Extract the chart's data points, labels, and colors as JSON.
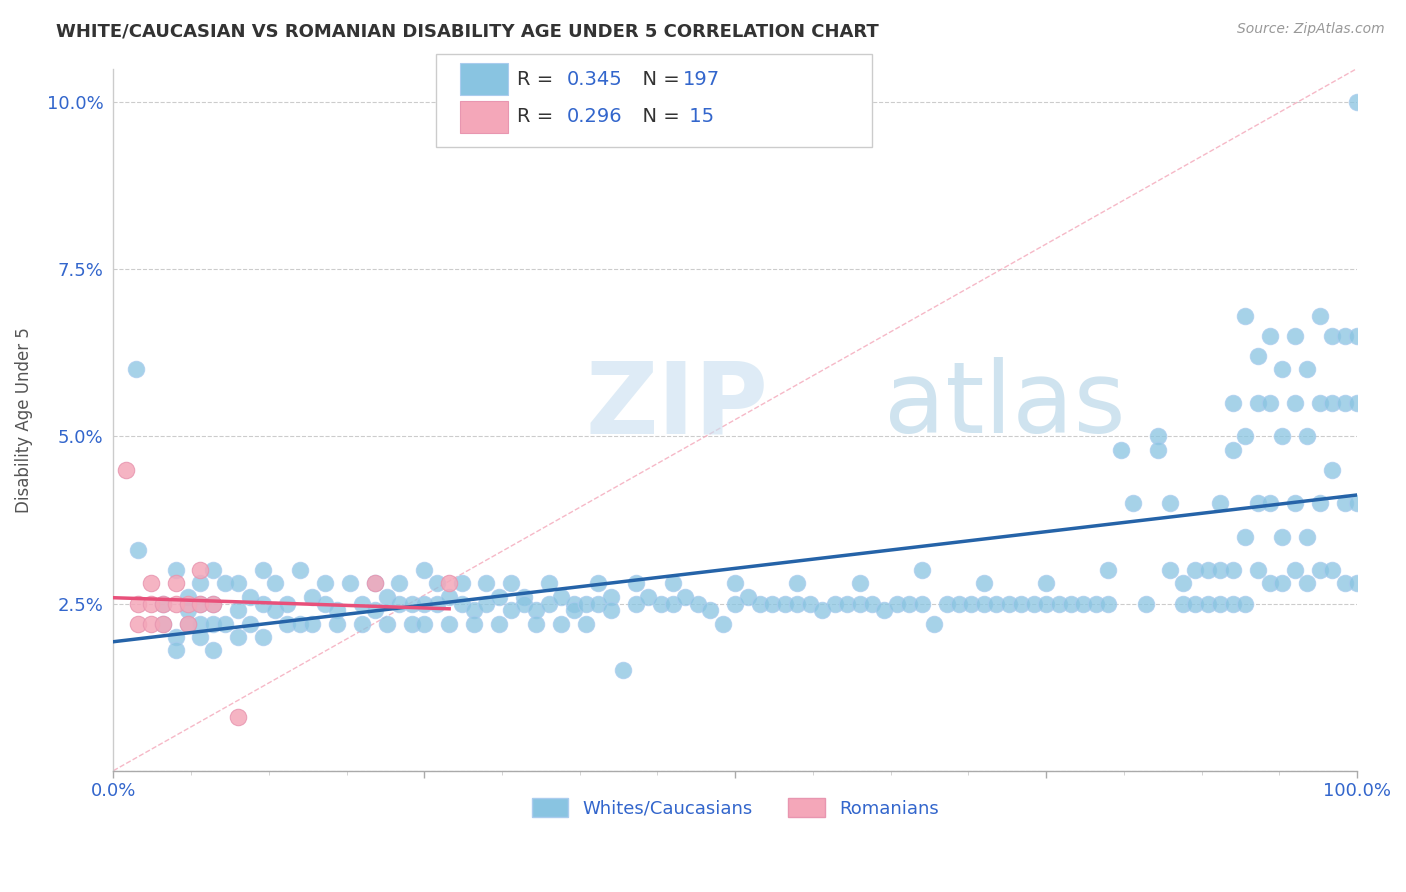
{
  "title": "WHITE/CAUCASIAN VS ROMANIAN DISABILITY AGE UNDER 5 CORRELATION CHART",
  "source": "Source: ZipAtlas.com",
  "ylabel": "Disability Age Under 5",
  "xlim": [
    0.0,
    1.0
  ],
  "ylim": [
    0.0,
    0.105
  ],
  "title_color": "#333333",
  "source_color": "#999999",
  "watermark_zip": "ZIP",
  "watermark_atlas": "atlas",
  "blue_color": "#89c4e1",
  "pink_color": "#f4a7b9",
  "blue_line_color": "#2563a8",
  "pink_line_color": "#e8507a",
  "diag_line_color": "#f4a7b9",
  "label_color": "#3366cc",
  "legend_text_color": "#333333",
  "whites_label": "Whites/Caucasians",
  "romanians_label": "Romanians",
  "blue_scatter": [
    [
      0.018,
      0.06
    ],
    [
      0.02,
      0.033
    ],
    [
      0.04,
      0.022
    ],
    [
      0.04,
      0.025
    ],
    [
      0.05,
      0.03
    ],
    [
      0.05,
      0.02
    ],
    [
      0.05,
      0.018
    ],
    [
      0.06,
      0.026
    ],
    [
      0.06,
      0.024
    ],
    [
      0.06,
      0.022
    ],
    [
      0.07,
      0.028
    ],
    [
      0.07,
      0.025
    ],
    [
      0.07,
      0.022
    ],
    [
      0.07,
      0.02
    ],
    [
      0.08,
      0.03
    ],
    [
      0.08,
      0.025
    ],
    [
      0.08,
      0.022
    ],
    [
      0.08,
      0.018
    ],
    [
      0.09,
      0.028
    ],
    [
      0.09,
      0.022
    ],
    [
      0.1,
      0.028
    ],
    [
      0.1,
      0.024
    ],
    [
      0.1,
      0.02
    ],
    [
      0.11,
      0.026
    ],
    [
      0.11,
      0.022
    ],
    [
      0.12,
      0.03
    ],
    [
      0.12,
      0.025
    ],
    [
      0.12,
      0.02
    ],
    [
      0.13,
      0.028
    ],
    [
      0.13,
      0.024
    ],
    [
      0.14,
      0.025
    ],
    [
      0.14,
      0.022
    ],
    [
      0.15,
      0.03
    ],
    [
      0.15,
      0.022
    ],
    [
      0.16,
      0.026
    ],
    [
      0.16,
      0.022
    ],
    [
      0.17,
      0.028
    ],
    [
      0.17,
      0.025
    ],
    [
      0.18,
      0.024
    ],
    [
      0.18,
      0.022
    ],
    [
      0.19,
      0.028
    ],
    [
      0.2,
      0.025
    ],
    [
      0.2,
      0.022
    ],
    [
      0.21,
      0.028
    ],
    [
      0.21,
      0.024
    ],
    [
      0.22,
      0.026
    ],
    [
      0.22,
      0.022
    ],
    [
      0.23,
      0.028
    ],
    [
      0.23,
      0.025
    ],
    [
      0.24,
      0.025
    ],
    [
      0.24,
      0.022
    ],
    [
      0.25,
      0.03
    ],
    [
      0.25,
      0.025
    ],
    [
      0.25,
      0.022
    ],
    [
      0.26,
      0.028
    ],
    [
      0.26,
      0.025
    ],
    [
      0.27,
      0.026
    ],
    [
      0.27,
      0.022
    ],
    [
      0.28,
      0.028
    ],
    [
      0.28,
      0.025
    ],
    [
      0.29,
      0.024
    ],
    [
      0.29,
      0.022
    ],
    [
      0.3,
      0.028
    ],
    [
      0.3,
      0.025
    ],
    [
      0.31,
      0.026
    ],
    [
      0.31,
      0.022
    ],
    [
      0.32,
      0.028
    ],
    [
      0.32,
      0.024
    ],
    [
      0.33,
      0.026
    ],
    [
      0.33,
      0.025
    ],
    [
      0.34,
      0.024
    ],
    [
      0.34,
      0.022
    ],
    [
      0.35,
      0.028
    ],
    [
      0.35,
      0.025
    ],
    [
      0.36,
      0.026
    ],
    [
      0.36,
      0.022
    ],
    [
      0.37,
      0.025
    ],
    [
      0.37,
      0.024
    ],
    [
      0.38,
      0.025
    ],
    [
      0.38,
      0.022
    ],
    [
      0.39,
      0.028
    ],
    [
      0.39,
      0.025
    ],
    [
      0.4,
      0.026
    ],
    [
      0.4,
      0.024
    ],
    [
      0.41,
      0.015
    ],
    [
      0.42,
      0.028
    ],
    [
      0.42,
      0.025
    ],
    [
      0.43,
      0.026
    ],
    [
      0.44,
      0.025
    ],
    [
      0.45,
      0.028
    ],
    [
      0.45,
      0.025
    ],
    [
      0.46,
      0.026
    ],
    [
      0.47,
      0.025
    ],
    [
      0.48,
      0.024
    ],
    [
      0.49,
      0.022
    ],
    [
      0.5,
      0.028
    ],
    [
      0.5,
      0.025
    ],
    [
      0.51,
      0.026
    ],
    [
      0.52,
      0.025
    ],
    [
      0.53,
      0.025
    ],
    [
      0.54,
      0.025
    ],
    [
      0.55,
      0.028
    ],
    [
      0.55,
      0.025
    ],
    [
      0.56,
      0.025
    ],
    [
      0.57,
      0.024
    ],
    [
      0.58,
      0.025
    ],
    [
      0.59,
      0.025
    ],
    [
      0.6,
      0.028
    ],
    [
      0.6,
      0.025
    ],
    [
      0.61,
      0.025
    ],
    [
      0.62,
      0.024
    ],
    [
      0.63,
      0.025
    ],
    [
      0.64,
      0.025
    ],
    [
      0.65,
      0.03
    ],
    [
      0.65,
      0.025
    ],
    [
      0.66,
      0.022
    ],
    [
      0.67,
      0.025
    ],
    [
      0.68,
      0.025
    ],
    [
      0.69,
      0.025
    ],
    [
      0.7,
      0.028
    ],
    [
      0.7,
      0.025
    ],
    [
      0.71,
      0.025
    ],
    [
      0.72,
      0.025
    ],
    [
      0.73,
      0.025
    ],
    [
      0.74,
      0.025
    ],
    [
      0.75,
      0.028
    ],
    [
      0.75,
      0.025
    ],
    [
      0.76,
      0.025
    ],
    [
      0.77,
      0.025
    ],
    [
      0.78,
      0.025
    ],
    [
      0.79,
      0.025
    ],
    [
      0.8,
      0.03
    ],
    [
      0.8,
      0.025
    ],
    [
      0.81,
      0.048
    ],
    [
      0.82,
      0.04
    ],
    [
      0.83,
      0.025
    ],
    [
      0.84,
      0.05
    ],
    [
      0.84,
      0.048
    ],
    [
      0.85,
      0.04
    ],
    [
      0.85,
      0.03
    ],
    [
      0.86,
      0.028
    ],
    [
      0.86,
      0.025
    ],
    [
      0.87,
      0.03
    ],
    [
      0.87,
      0.025
    ],
    [
      0.88,
      0.03
    ],
    [
      0.88,
      0.025
    ],
    [
      0.89,
      0.04
    ],
    [
      0.89,
      0.03
    ],
    [
      0.89,
      0.025
    ],
    [
      0.9,
      0.055
    ],
    [
      0.9,
      0.048
    ],
    [
      0.9,
      0.03
    ],
    [
      0.9,
      0.025
    ],
    [
      0.91,
      0.068
    ],
    [
      0.91,
      0.05
    ],
    [
      0.91,
      0.035
    ],
    [
      0.91,
      0.025
    ],
    [
      0.92,
      0.062
    ],
    [
      0.92,
      0.055
    ],
    [
      0.92,
      0.04
    ],
    [
      0.92,
      0.03
    ],
    [
      0.93,
      0.065
    ],
    [
      0.93,
      0.055
    ],
    [
      0.93,
      0.04
    ],
    [
      0.93,
      0.028
    ],
    [
      0.94,
      0.06
    ],
    [
      0.94,
      0.05
    ],
    [
      0.94,
      0.035
    ],
    [
      0.94,
      0.028
    ],
    [
      0.95,
      0.065
    ],
    [
      0.95,
      0.055
    ],
    [
      0.95,
      0.04
    ],
    [
      0.95,
      0.03
    ],
    [
      0.96,
      0.06
    ],
    [
      0.96,
      0.05
    ],
    [
      0.96,
      0.035
    ],
    [
      0.96,
      0.028
    ],
    [
      0.97,
      0.068
    ],
    [
      0.97,
      0.055
    ],
    [
      0.97,
      0.04
    ],
    [
      0.97,
      0.03
    ],
    [
      0.98,
      0.065
    ],
    [
      0.98,
      0.055
    ],
    [
      0.98,
      0.045
    ],
    [
      0.98,
      0.03
    ],
    [
      0.99,
      0.065
    ],
    [
      0.99,
      0.055
    ],
    [
      0.99,
      0.04
    ],
    [
      0.99,
      0.028
    ],
    [
      1.0,
      0.1
    ],
    [
      1.0,
      0.065
    ],
    [
      1.0,
      0.055
    ],
    [
      1.0,
      0.04
    ],
    [
      1.0,
      0.028
    ]
  ],
  "pink_scatter": [
    [
      0.01,
      0.045
    ],
    [
      0.02,
      0.025
    ],
    [
      0.02,
      0.022
    ],
    [
      0.03,
      0.028
    ],
    [
      0.03,
      0.025
    ],
    [
      0.03,
      0.022
    ],
    [
      0.04,
      0.025
    ],
    [
      0.04,
      0.022
    ],
    [
      0.05,
      0.028
    ],
    [
      0.05,
      0.025
    ],
    [
      0.06,
      0.025
    ],
    [
      0.06,
      0.022
    ],
    [
      0.07,
      0.03
    ],
    [
      0.07,
      0.025
    ],
    [
      0.08,
      0.025
    ],
    [
      0.1,
      0.008
    ],
    [
      0.21,
      0.028
    ],
    [
      0.27,
      0.028
    ]
  ],
  "blue_line_x": [
    0.0,
    1.0
  ],
  "blue_line_y_start": 0.015,
  "blue_line_y_end": 0.03,
  "pink_line_x": [
    0.0,
    0.18
  ],
  "pink_line_y_start": 0.02,
  "pink_line_y_end": 0.033
}
